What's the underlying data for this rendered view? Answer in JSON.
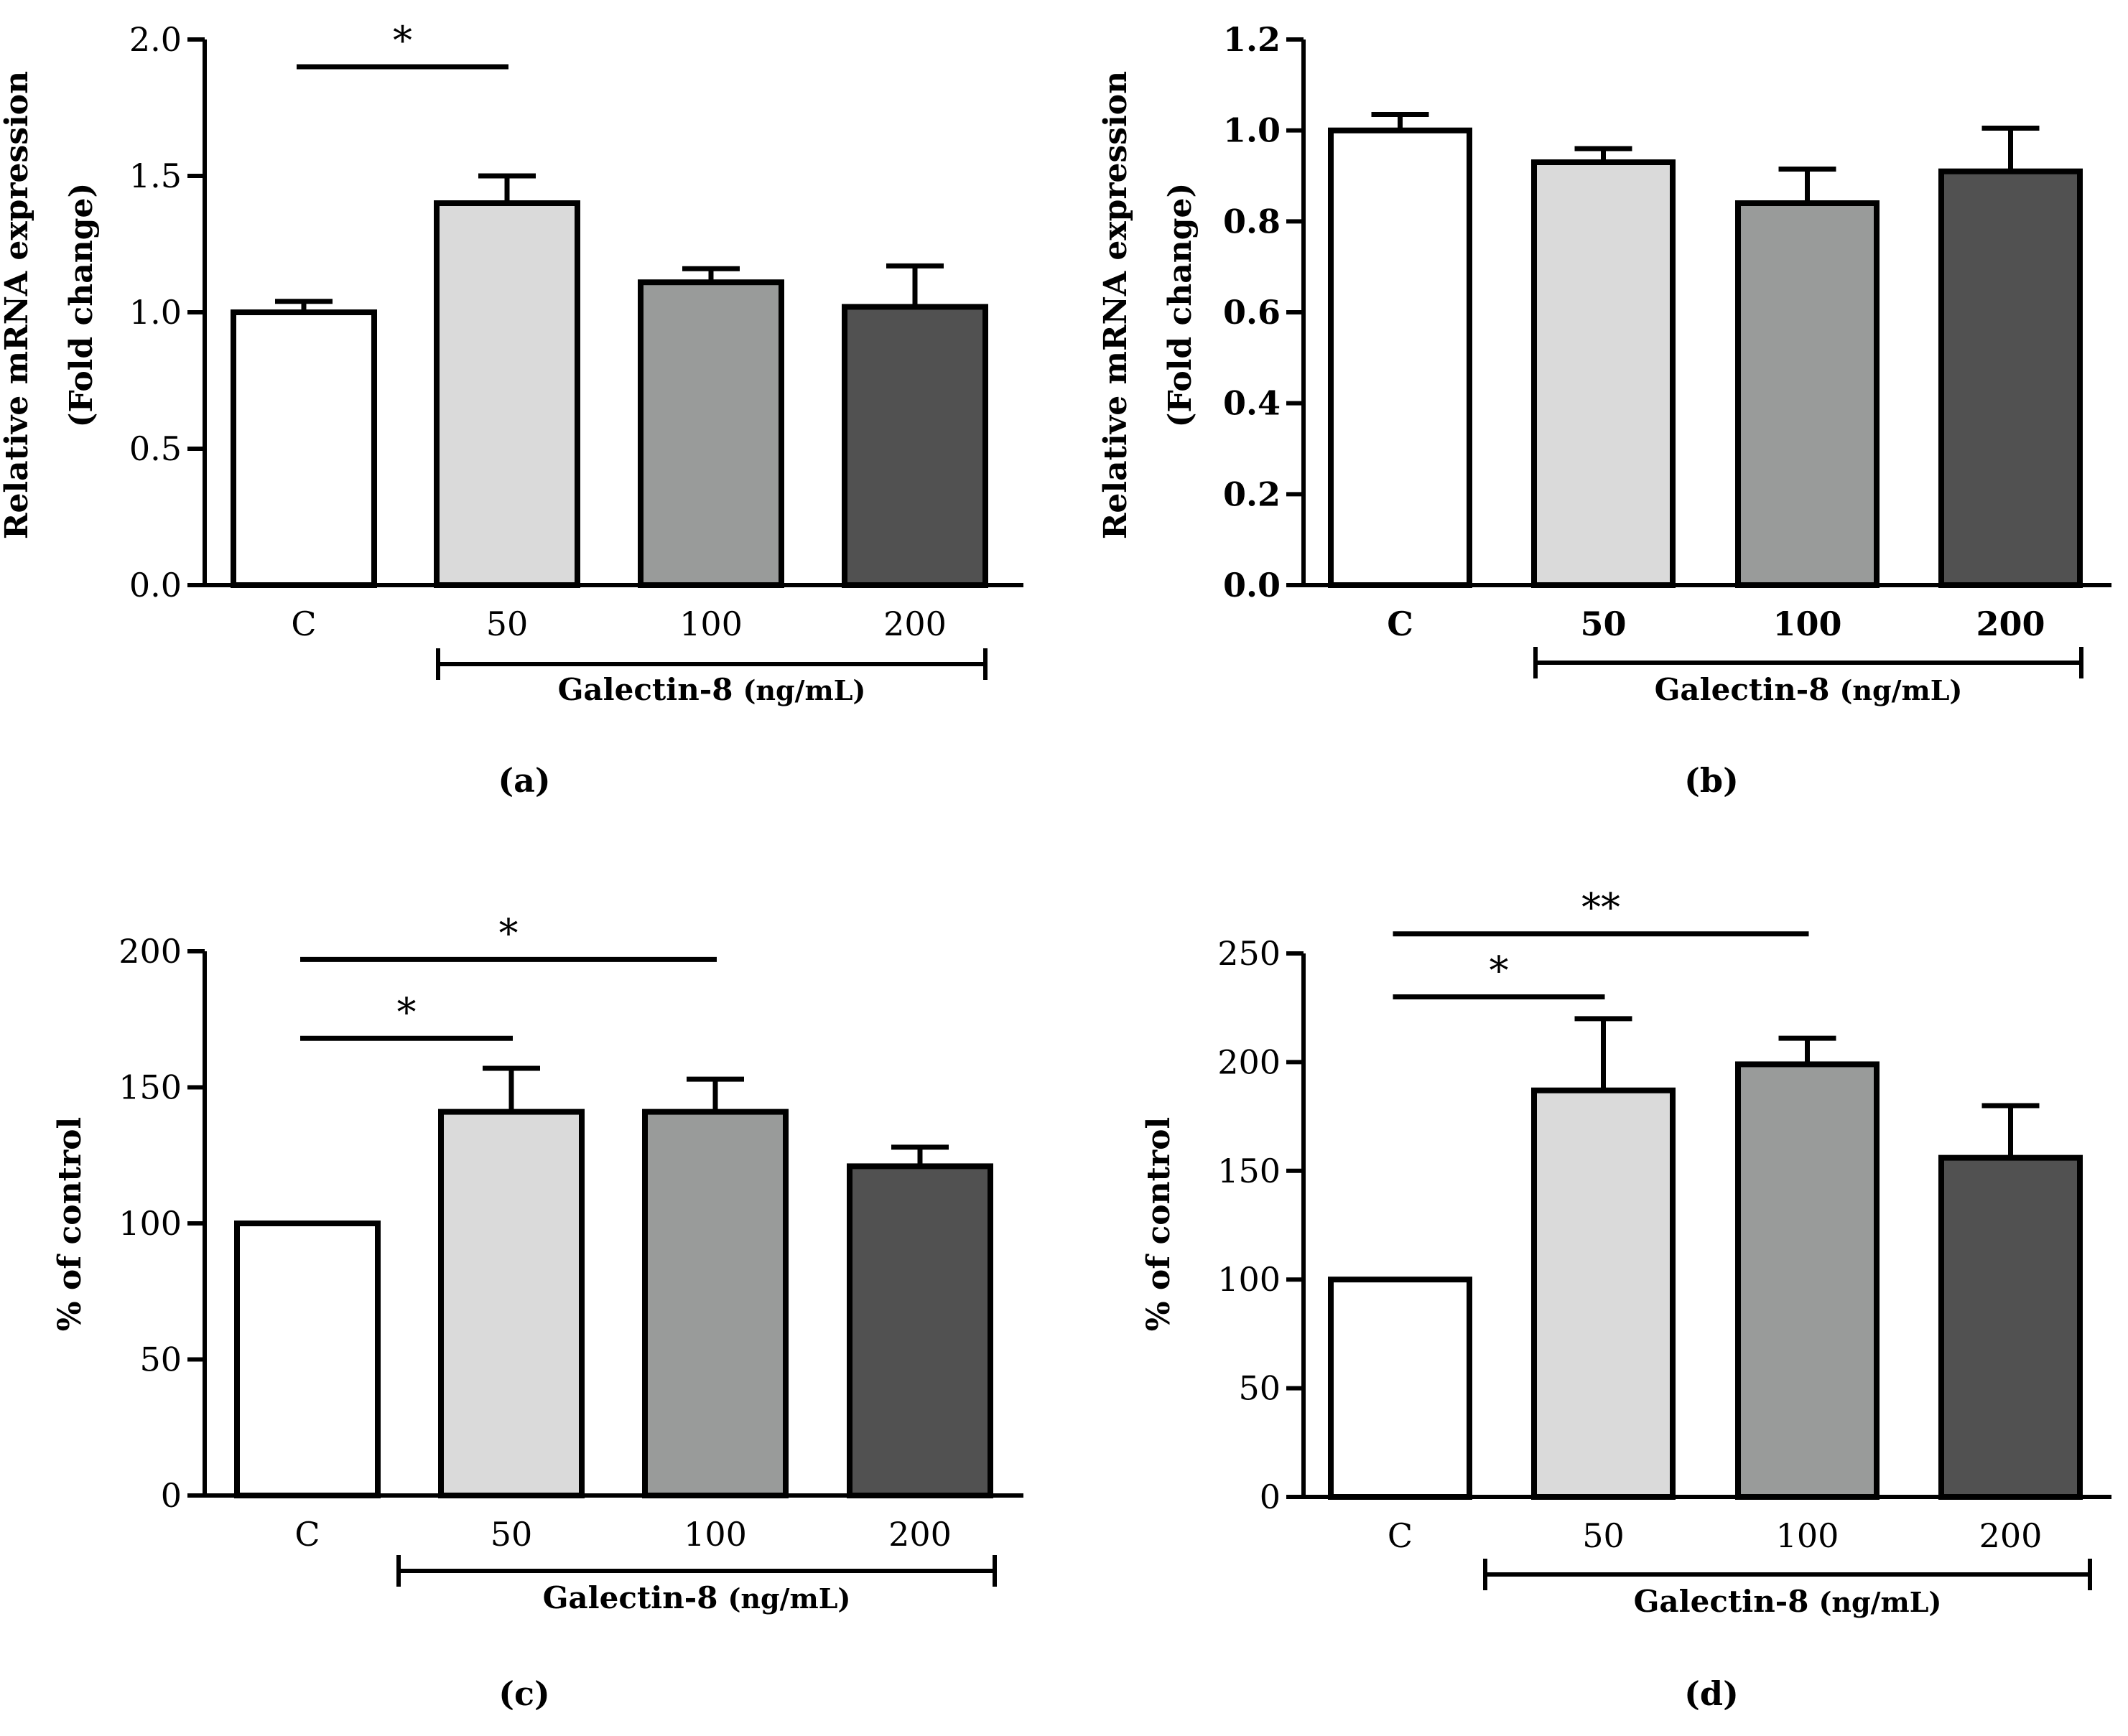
{
  "figure": {
    "group_label": "Galectin-8",
    "group_unit": "(ng/mL)"
  },
  "chart_data": [
    {
      "panel": "(a)",
      "type": "bar",
      "categories": [
        "C",
        "50",
        "100",
        "200"
      ],
      "values": [
        1.0,
        1.4,
        1.11,
        1.02
      ],
      "errors": [
        0.04,
        0.1,
        0.05,
        0.15
      ],
      "ylabel": [
        "Relative mRNA expression",
        "(Fold change)"
      ],
      "ylim": [
        0,
        2.0
      ],
      "yticks": [
        0,
        0.5,
        1.0,
        1.5,
        2.0
      ],
      "ytick_labels": [
        "0.0",
        "0.5",
        "1.0",
        "1.5",
        "2.0"
      ],
      "tick_bold": false,
      "colors": [
        "#ffffff",
        "#dadada",
        "#999b9a",
        "#515151"
      ],
      "significance": [
        {
          "from": 0,
          "to": 1,
          "label": "*",
          "level": 1.9
        }
      ],
      "group_label": "Galectin-8",
      "group_unit": "(ng/mL)"
    },
    {
      "panel": "(b)",
      "type": "bar",
      "categories": [
        "C",
        "50",
        "100",
        "200"
      ],
      "values": [
        1.0,
        0.93,
        0.84,
        0.91
      ],
      "errors": [
        0.035,
        0.03,
        0.075,
        0.095
      ],
      "ylabel": [
        "Relative mRNA expression",
        "(Fold change)"
      ],
      "ylim": [
        0,
        1.2
      ],
      "yticks": [
        0,
        0.2,
        0.4,
        0.6,
        0.8,
        1.0,
        1.2
      ],
      "ytick_labels": [
        "0.0",
        "0.2",
        "0.4",
        "0.6",
        "0.8",
        "1.0",
        "1.2"
      ],
      "tick_bold": true,
      "colors": [
        "#ffffff",
        "#dadada",
        "#999b9a",
        "#515151"
      ],
      "significance": [],
      "group_label": "Galectin-8",
      "group_unit": "(ng/mL)"
    },
    {
      "panel": "(c)",
      "type": "bar",
      "categories": [
        "C",
        "50",
        "100",
        "200"
      ],
      "values": [
        100,
        141,
        141,
        121
      ],
      "errors": [
        0,
        16,
        12,
        7
      ],
      "ylabel": [
        "% of control"
      ],
      "ylim": [
        0,
        200
      ],
      "yticks": [
        0,
        50,
        100,
        150,
        200
      ],
      "ytick_labels": [
        "0",
        "50",
        "100",
        "150",
        "200"
      ],
      "tick_bold": false,
      "colors": [
        "#ffffff",
        "#dadada",
        "#999b9a",
        "#515151"
      ],
      "significance": [
        {
          "from": 0,
          "to": 2,
          "label": "*",
          "level": 197
        },
        {
          "from": 0,
          "to": 1,
          "label": "*",
          "level": 168
        }
      ],
      "group_label": "Galectin-8",
      "group_unit": "(ng/mL)"
    },
    {
      "panel": "(d)",
      "type": "bar",
      "categories": [
        "C",
        "50",
        "100",
        "200"
      ],
      "values": [
        100,
        187,
        199,
        156
      ],
      "errors": [
        0,
        33,
        12,
        24
      ],
      "ylabel": [
        "% of control"
      ],
      "ylim": [
        0,
        250
      ],
      "yticks": [
        0,
        50,
        100,
        150,
        200,
        250
      ],
      "ytick_labels": [
        "0",
        "50",
        "100",
        "150",
        "200",
        "250"
      ],
      "tick_bold": false,
      "colors": [
        "#ffffff",
        "#dadada",
        "#999b9a",
        "#515151"
      ],
      "significance": [
        {
          "from": 0,
          "to": 2,
          "label": "**",
          "level": 259
        },
        {
          "from": 0,
          "to": 1,
          "label": "*",
          "level": 230
        }
      ],
      "group_label": "Galectin-8",
      "group_unit": "(ng/mL)"
    }
  ]
}
